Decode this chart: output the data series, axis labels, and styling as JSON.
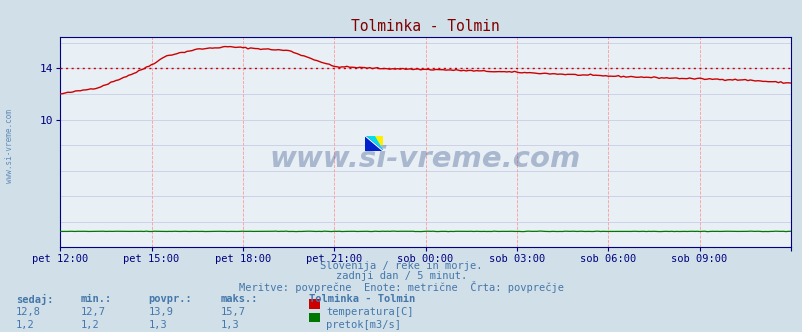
{
  "title": "Tolminka - Tolmin",
  "title_color": "#800000",
  "bg_color": "#d0dfe8",
  "plot_bg_color": "#e8eff5",
  "grid_color_v": "#ff9999",
  "grid_color_h": "#bbbbdd",
  "watermark_text": "www.si-vreme.com",
  "watermark_color": "#1a3a7a",
  "watermark_alpha": 0.3,
  "footer_line1": "Slovenija / reke in morje.",
  "footer_line2": "zadnji dan / 5 minut.",
  "footer_line3": "Meritve: povprečne  Enote: metrične  Črta: povprečje",
  "footer_color": "#4477aa",
  "xlabel_color": "#4477aa",
  "ylabel_color": "#4477aa",
  "axis_color": "#000080",
  "tick_color": "#000080",
  "temp_color": "#cc0000",
  "flow_color": "#007700",
  "dotted_line_value": 14.0,
  "dotted_line_color": "#cc0000",
  "ytick_labels": [
    "10",
    "14"
  ],
  "ytick_values": [
    10,
    14
  ],
  "ylim": [
    0,
    16.5
  ],
  "xlim": [
    0,
    288
  ],
  "xtick_positions": [
    0,
    36,
    72,
    108,
    144,
    180,
    216,
    252,
    288
  ],
  "xtick_labels": [
    "pet 12:00",
    "pet 15:00",
    "pet 18:00",
    "pet 21:00",
    "sob 00:00",
    "sob 03:00",
    "sob 06:00",
    "sob 09:00",
    ""
  ],
  "legend_title": "Tolminka - Tolmin",
  "legend_items": [
    {
      "label": "temperatura[C]",
      "color": "#cc0000"
    },
    {
      "label": "pretok[m3/s]",
      "color": "#007700"
    }
  ],
  "table_headers": [
    "sedaj:",
    "min.:",
    "povpr.:",
    "maks.:"
  ],
  "table_row1": [
    "12,8",
    "12,7",
    "13,9",
    "15,7"
  ],
  "table_row2": [
    "1,2",
    "1,2",
    "1,3",
    "1,3"
  ],
  "table_color": "#4477aa",
  "sidebar_text": "www.si-vreme.com",
  "sidebar_color": "#4477aa"
}
